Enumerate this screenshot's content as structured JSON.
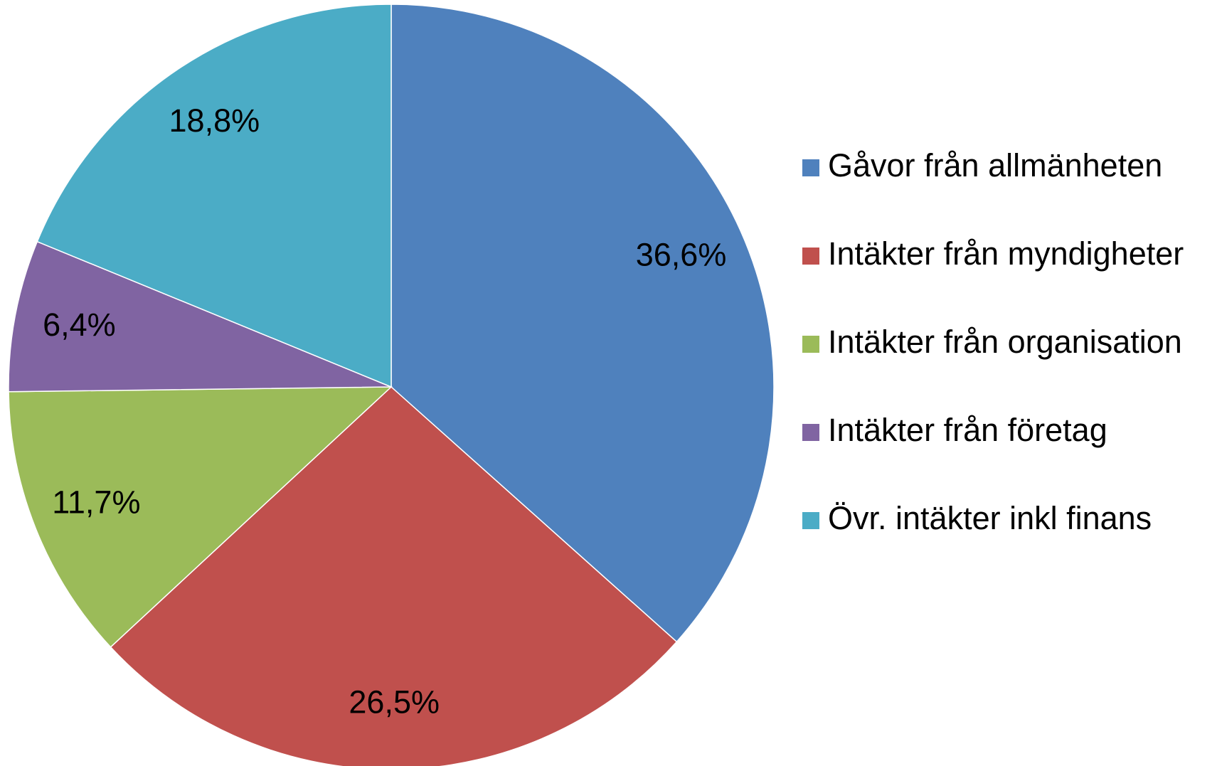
{
  "chart_data": {
    "type": "pie",
    "categories": [
      "Gåvor från allmänheten",
      "Intäkter från myndigheter",
      "Intäkter från organisation",
      "Intäkter från företag",
      "Övr. intäkter inkl finans"
    ],
    "values": [
      36.6,
      26.5,
      11.7,
      6.4,
      18.8
    ],
    "value_labels": [
      "36,6%",
      "26,5%",
      "11,7%",
      "6,4%",
      "18,8%"
    ],
    "colors": [
      "#4f81bd",
      "#c0504d",
      "#9bbb59",
      "#8064a2",
      "#4bacc6"
    ],
    "legend": "right"
  }
}
